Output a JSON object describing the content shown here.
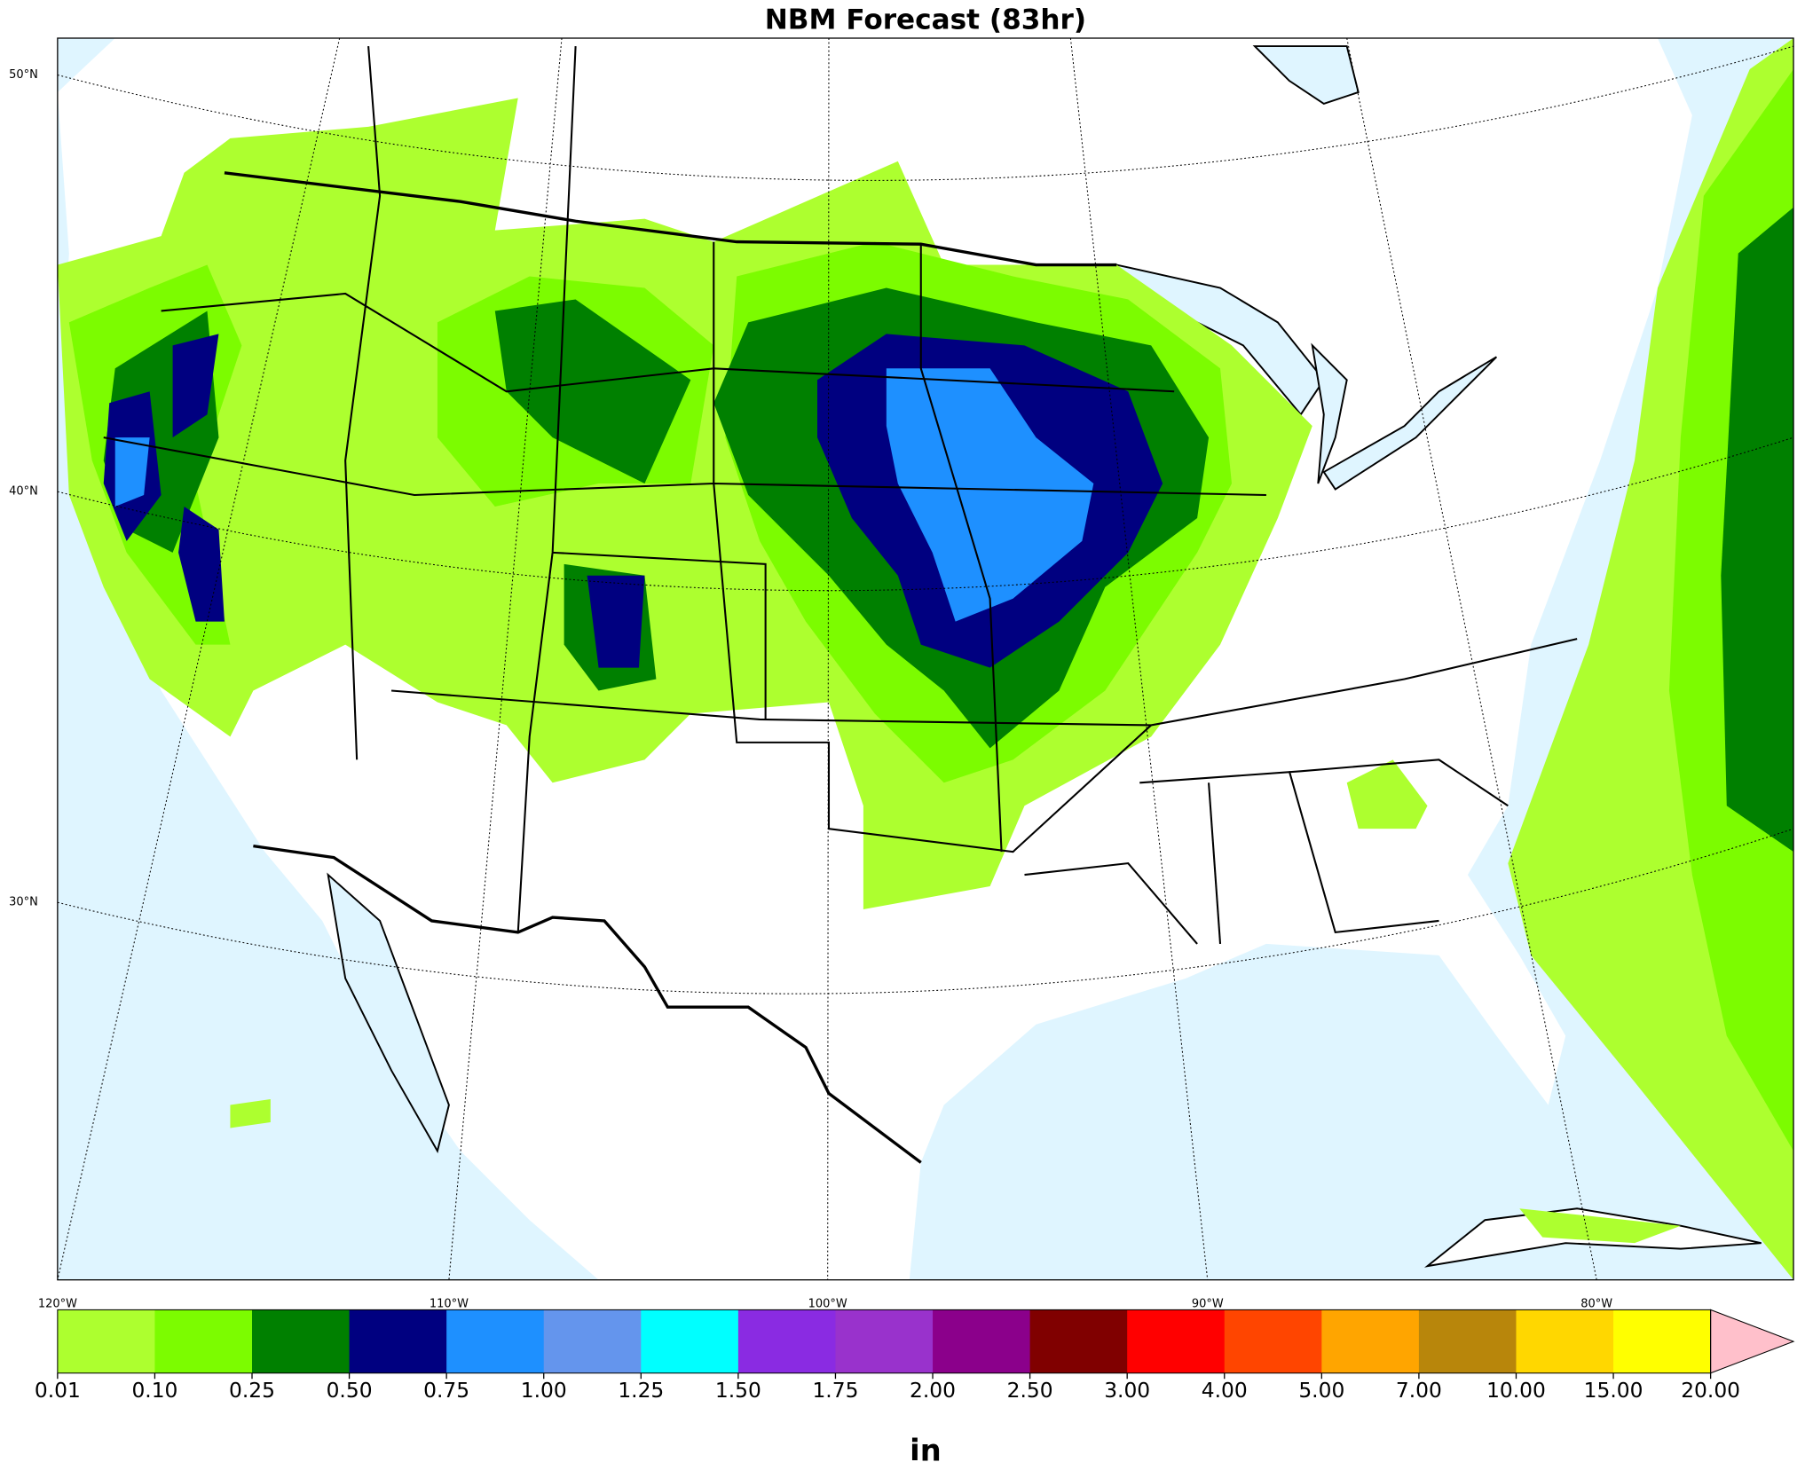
{
  "title": "NBM Forecast (83hr)",
  "map": {
    "lat_labels": [
      "50°N",
      "40°N",
      "30°N"
    ],
    "lon_labels": [
      "120°W",
      "110°W",
      "100°W",
      "90°W",
      "80°W"
    ]
  },
  "colorbar": {
    "levels": [
      "0.01",
      "0.10",
      "0.25",
      "0.50",
      "0.75",
      "1.00",
      "1.25",
      "1.50",
      "1.75",
      "2.00",
      "2.50",
      "3.00",
      "4.00",
      "5.00",
      "7.00",
      "10.00",
      "15.00",
      "20.00"
    ],
    "colors": [
      "#adff2f",
      "#7cfc00",
      "#008000",
      "#000080",
      "#1e90ff",
      "#6495ed",
      "#00ffff",
      "#8a2be2",
      "#9932cc",
      "#8b008b",
      "#800000",
      "#ff0000",
      "#ff4500",
      "#ffa500",
      "#b8860b",
      "#ffd700",
      "#ffff00"
    ],
    "extend_color": "#ffc0cb",
    "unit": "in"
  }
}
